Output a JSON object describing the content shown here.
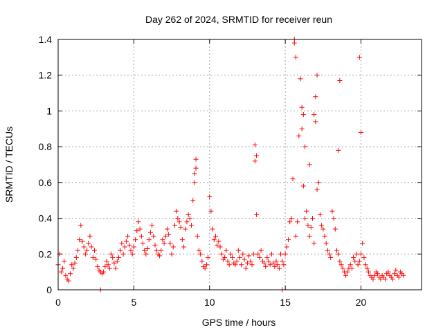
{
  "chart_data": {
    "type": "scatter",
    "title": "Day 262 of 2024, SRMTID for receiver reun",
    "xlabel": "GPS time / hours",
    "ylabel": "SRMTID / TECUs",
    "xlim": [
      0,
      24
    ],
    "ylim": [
      0,
      1.4
    ],
    "x_ticks": [
      0,
      5,
      10,
      15,
      20
    ],
    "x_tick_labels": [
      "0",
      "5",
      "10",
      "15",
      "20"
    ],
    "y_ticks": [
      0,
      0.2,
      0.4,
      0.6,
      0.8,
      1.0,
      1.2,
      1.4
    ],
    "y_tick_labels": [
      "0",
      "0.2",
      "0.4",
      "0.6",
      "0.8",
      "1",
      "1.2",
      "1.4"
    ],
    "grid": true,
    "marker": "+",
    "series_color": "#ff0000",
    "series": [
      {
        "name": "SRMTID",
        "x": [
          0.0,
          0.1,
          0.2,
          0.3,
          0.4,
          0.5,
          0.6,
          0.7,
          0.8,
          0.9,
          1.0,
          1.1,
          1.2,
          1.3,
          1.4,
          1.5,
          1.6,
          1.7,
          1.8,
          1.9,
          2.0,
          2.1,
          2.2,
          2.3,
          2.4,
          2.5,
          2.6,
          2.7,
          2.8,
          2.9,
          3.0,
          3.1,
          3.2,
          3.3,
          3.4,
          3.5,
          3.6,
          3.7,
          3.8,
          3.9,
          4.0,
          4.1,
          4.2,
          4.3,
          4.4,
          4.5,
          4.6,
          4.7,
          4.8,
          4.9,
          5.0,
          5.1,
          5.2,
          5.3,
          5.4,
          5.5,
          5.6,
          5.7,
          5.8,
          5.9,
          6.0,
          6.1,
          6.2,
          6.3,
          6.4,
          6.5,
          6.6,
          6.7,
          6.8,
          6.9,
          7.0,
          7.1,
          7.2,
          7.3,
          7.4,
          7.5,
          7.6,
          7.7,
          7.8,
          7.9,
          8.0,
          8.1,
          8.2,
          8.3,
          8.4,
          8.5,
          8.6,
          8.7,
          8.8,
          8.9,
          9.0,
          9.1,
          9.2,
          9.3,
          9.4,
          9.5,
          9.6,
          9.7,
          9.8,
          9.9,
          10.0,
          10.1,
          10.2,
          10.3,
          10.4,
          10.5,
          10.6,
          10.7,
          10.8,
          10.9,
          11.0,
          11.1,
          11.2,
          11.3,
          11.4,
          11.5,
          11.6,
          11.7,
          11.8,
          11.9,
          12.0,
          12.1,
          12.2,
          12.3,
          12.4,
          12.5,
          12.6,
          12.7,
          12.8,
          12.9,
          13.0,
          13.1,
          13.2,
          13.3,
          13.4,
          13.5,
          13.6,
          13.7,
          13.8,
          13.9,
          14.0,
          14.1,
          14.2,
          14.3,
          14.4,
          14.5,
          14.6,
          14.7,
          14.8,
          14.9,
          15.0,
          15.1,
          15.2,
          15.3,
          15.4,
          15.5,
          15.6,
          15.7,
          15.8,
          15.9,
          16.0,
          16.1,
          16.2,
          16.3,
          16.4,
          16.5,
          16.6,
          16.7,
          16.8,
          16.9,
          17.0,
          17.1,
          17.2,
          17.3,
          17.4,
          17.5,
          17.6,
          17.7,
          17.8,
          17.9,
          18.0,
          18.1,
          18.2,
          18.3,
          18.4,
          18.5,
          18.6,
          18.7,
          18.8,
          18.9,
          19.0,
          19.1,
          19.2,
          19.3,
          19.4,
          19.5,
          19.6,
          19.7,
          19.8,
          19.9,
          20.0,
          20.1,
          20.2,
          20.3,
          20.4,
          20.5,
          20.6,
          20.7,
          20.8,
          20.9,
          21.0,
          21.1,
          21.2,
          21.3,
          21.4,
          21.5,
          21.6,
          21.7,
          21.8,
          21.9,
          22.0,
          22.1,
          22.2,
          22.3,
          22.4,
          22.5,
          22.6,
          22.7,
          22.8,
          2.8,
          14.8,
          15.6,
          15.7,
          16.1,
          16.2,
          16.3,
          16.6,
          16.9,
          17.0,
          17.1,
          18.5,
          18.6,
          19.9,
          20.0,
          9.0,
          9.1,
          13.0,
          13.1
        ],
        "y": [
          0.14,
          0.2,
          0.1,
          0.12,
          0.16,
          0.08,
          0.06,
          0.05,
          0.09,
          0.14,
          0.12,
          0.15,
          0.18,
          0.22,
          0.28,
          0.36,
          0.27,
          0.24,
          0.2,
          0.22,
          0.26,
          0.3,
          0.24,
          0.18,
          0.22,
          0.17,
          0.13,
          0.11,
          0.1,
          0.09,
          0.1,
          0.13,
          0.16,
          0.14,
          0.12,
          0.2,
          0.18,
          0.15,
          0.12,
          0.16,
          0.18,
          0.22,
          0.26,
          0.2,
          0.24,
          0.27,
          0.3,
          0.25,
          0.22,
          0.2,
          0.24,
          0.28,
          0.33,
          0.38,
          0.34,
          0.3,
          0.26,
          0.22,
          0.2,
          0.23,
          0.28,
          0.32,
          0.36,
          0.3,
          0.25,
          0.22,
          0.2,
          0.19,
          0.22,
          0.28,
          0.26,
          0.3,
          0.34,
          0.31,
          0.26,
          0.2,
          0.24,
          0.36,
          0.44,
          0.4,
          0.38,
          0.35,
          0.28,
          0.24,
          0.34,
          0.38,
          0.42,
          0.4,
          0.36,
          0.5,
          0.6,
          0.68,
          0.3,
          0.22,
          0.2,
          0.16,
          0.13,
          0.12,
          0.14,
          0.18,
          0.52,
          0.44,
          0.34,
          0.28,
          0.3,
          0.25,
          0.27,
          0.24,
          0.2,
          0.17,
          0.18,
          0.22,
          0.16,
          0.14,
          0.2,
          0.18,
          0.15,
          0.14,
          0.16,
          0.22,
          0.18,
          0.14,
          0.2,
          0.17,
          0.12,
          0.15,
          0.19,
          0.16,
          0.14,
          0.2,
          0.72,
          0.42,
          0.2,
          0.18,
          0.22,
          0.16,
          0.15,
          0.13,
          0.18,
          0.16,
          0.14,
          0.2,
          0.15,
          0.13,
          0.16,
          0.14,
          0.12,
          0.2,
          0.16,
          0.14,
          0.2,
          0.24,
          0.28,
          0.38,
          0.4,
          0.62,
          1.38,
          0.3,
          0.38,
          0.86,
          1.18,
          0.9,
          0.58,
          0.4,
          0.44,
          0.36,
          0.3,
          0.35,
          0.4,
          0.26,
          0.94,
          1.2,
          0.6,
          0.42,
          0.36,
          0.34,
          0.3,
          0.26,
          0.22,
          0.2,
          0.18,
          0.44,
          0.4,
          0.34,
          0.22,
          0.2,
          0.16,
          0.14,
          0.12,
          0.1,
          0.08,
          0.1,
          0.12,
          0.14,
          0.12,
          0.18,
          0.16,
          0.2,
          0.14,
          0.16,
          0.2,
          0.26,
          0.18,
          0.14,
          0.12,
          0.1,
          0.08,
          0.07,
          0.06,
          0.08,
          0.1,
          0.09,
          0.07,
          0.06,
          0.08,
          0.07,
          0.06,
          0.09,
          0.1,
          0.08,
          0.07,
          0.06,
          0.09,
          0.11,
          0.08,
          0.07,
          0.1,
          0.09,
          0.08,
          0.0,
          0.0,
          1.4,
          1.3,
          1.02,
          0.98,
          0.8,
          0.7,
          0.98,
          1.08,
          0.56,
          0.78,
          1.17,
          1.3,
          0.88,
          0.65,
          0.73,
          0.81,
          0.75
        ],
        "color": "#ff0000"
      }
    ]
  }
}
